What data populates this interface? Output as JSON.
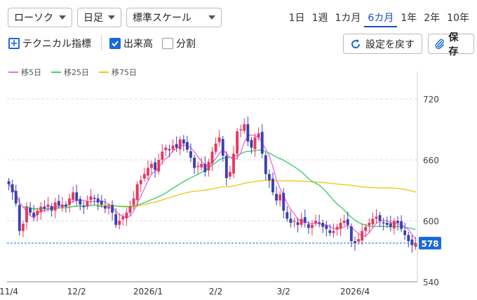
{
  "toolbar": {
    "chart_type": "ローソク",
    "interval": "日足",
    "scale": "標準スケール",
    "periods": [
      "1日",
      "1週",
      "1カ月",
      "6カ月",
      "1年",
      "2年",
      "10年"
    ],
    "active_period_index": 3
  },
  "options": {
    "technical_label": "テクニカル指標",
    "volume_label": "出来高",
    "volume_checked": true,
    "split_label": "分割",
    "split_checked": false,
    "reset_label": "設定を戻す",
    "save_label": "保存"
  },
  "colors": {
    "up": "#e8365d",
    "down": "#3b3fb4",
    "ma5": "#ee6fe0",
    "ma25": "#3ecf6e",
    "ma75": "#f2c81a",
    "price_tag": "#1a6ad8"
  },
  "chart_data": {
    "type": "candlestick",
    "legend": [
      "移5日",
      "移25日",
      "移75日"
    ],
    "y_ticks": [
      "720",
      "660",
      "600",
      "540"
    ],
    "ylim": [
      540,
      740
    ],
    "x_ticks": [
      {
        "label": "11/4",
        "index": 0
      },
      {
        "label": "12/2",
        "index": 19
      },
      {
        "label": "2026/1",
        "index": 39
      },
      {
        "label": "2/2",
        "index": 58
      },
      {
        "label": "3/2",
        "index": 77
      },
      {
        "label": "2026/4",
        "index": 97
      }
    ],
    "current_price": 578,
    "current_price_label": "578",
    "close": [
      636,
      628,
      617,
      590,
      597,
      614,
      608,
      604,
      610,
      614,
      612,
      616,
      610,
      618,
      615,
      616,
      614,
      622,
      628,
      620,
      616,
      614,
      619,
      624,
      622,
      618,
      616,
      612,
      614,
      608,
      596,
      600,
      604,
      608,
      614,
      622,
      636,
      640,
      646,
      652,
      656,
      650,
      660,
      668,
      672,
      670,
      674,
      672,
      680,
      676,
      670,
      662,
      652,
      654,
      656,
      648,
      658,
      668,
      676,
      682,
      664,
      642,
      648,
      666,
      688,
      690,
      695,
      678,
      672,
      682,
      686,
      666,
      646,
      640,
      628,
      620,
      626,
      610,
      602,
      598,
      600,
      596,
      602,
      598,
      593,
      596,
      600,
      598,
      594,
      592,
      588,
      590,
      594,
      598,
      600,
      596,
      580,
      578,
      582,
      590,
      594,
      598,
      602,
      604,
      600,
      598,
      596,
      594,
      600,
      598,
      592,
      586,
      580,
      576,
      578
    ]
  }
}
